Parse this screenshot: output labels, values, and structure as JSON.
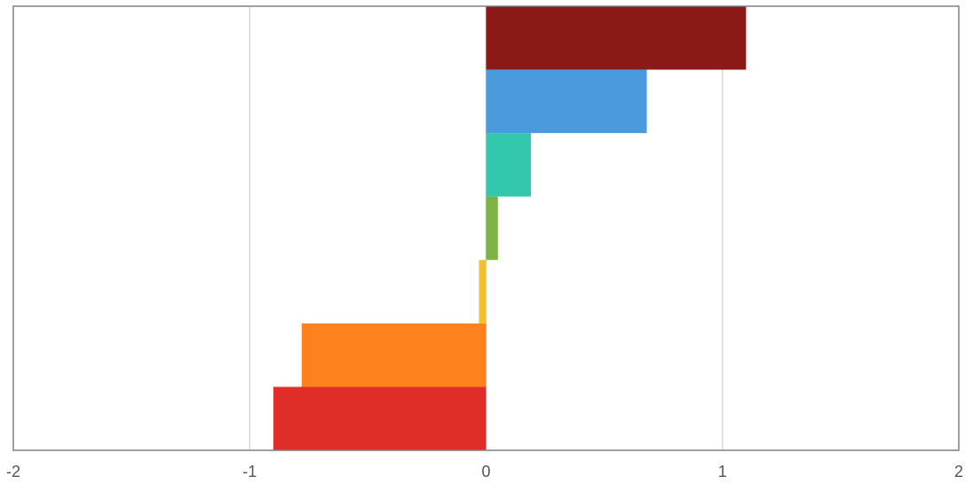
{
  "chart_data": {
    "type": "bar",
    "orientation": "horizontal",
    "categories": [
      "",
      "",
      "",
      "",
      "",
      "",
      ""
    ],
    "values": [
      1.1,
      0.68,
      0.19,
      0.05,
      -0.03,
      -0.78,
      -0.9
    ],
    "colors": [
      "#8b1915",
      "#4a9bdd",
      "#33c7ae",
      "#7cb342",
      "#f0c030",
      "#fd811c",
      "#e02d28"
    ],
    "title": "",
    "xlabel": "",
    "ylabel": "",
    "xlim": [
      -2,
      2
    ],
    "x_ticks": [
      -2,
      -1,
      0,
      1,
      2
    ],
    "x_tick_labels": [
      "-2",
      "-1",
      "0",
      "1",
      "2"
    ],
    "grid": true,
    "legend": "none"
  }
}
